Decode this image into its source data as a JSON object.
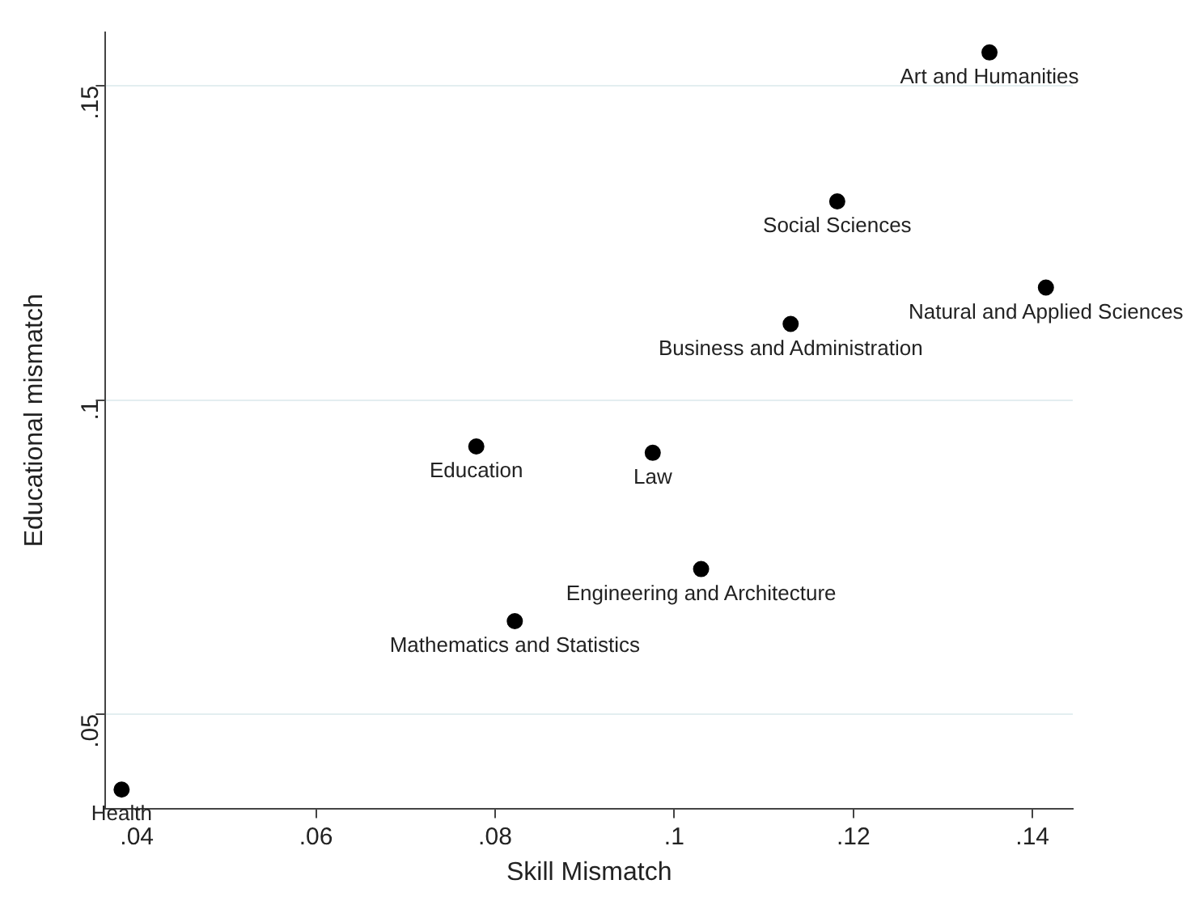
{
  "chart_data": {
    "type": "scatter",
    "xlabel": "Skill Mismatch",
    "ylabel": "Educational mismatch",
    "x": [
      0.1352,
      0.1182,
      0.1415,
      0.113,
      0.0779,
      0.0976,
      0.103,
      0.0822,
      0.0383
    ],
    "series": [
      {
        "color": "#000000",
        "values": [
          0.1553,
          0.1316,
          0.1179,
          0.1121,
          0.0926,
          0.0916,
          0.0731,
          0.0648,
          0.038
        ]
      }
    ],
    "xlim": [
      0.0365,
      0.1445
    ],
    "ylim": [
      0.035,
      0.1585
    ],
    "xticks": [
      {
        "value": 0.04,
        "label": ".04"
      },
      {
        "value": 0.06,
        "label": ".06"
      },
      {
        "value": 0.08,
        "label": ".08"
      },
      {
        "value": 0.1,
        "label": ".1"
      },
      {
        "value": 0.12,
        "label": ".12"
      },
      {
        "value": 0.14,
        "label": ".14"
      }
    ],
    "yticks": [
      {
        "value": 0.05,
        "label": ".05"
      },
      {
        "value": 0.1,
        "label": ".1"
      },
      {
        "value": 0.15,
        "label": ".15"
      }
    ],
    "grid": "y",
    "marker": "circle",
    "legend": false,
    "annotations": [
      {
        "text": "Art and Humanities",
        "x": 0.1352,
        "y": 0.1553
      },
      {
        "text": "Social Sciences",
        "x": 0.1182,
        "y": 0.1316
      },
      {
        "text": "Natural and Applied Sciences",
        "x": 0.1415,
        "y": 0.1179
      },
      {
        "text": "Business and Administration",
        "x": 0.113,
        "y": 0.1121
      },
      {
        "text": "Education",
        "x": 0.0779,
        "y": 0.0926
      },
      {
        "text": "Law",
        "x": 0.0976,
        "y": 0.0916
      },
      {
        "text": "Engineering and Architecture",
        "x": 0.103,
        "y": 0.0731
      },
      {
        "text": "Mathematics and Statistics",
        "x": 0.0822,
        "y": 0.0648
      },
      {
        "text": "Health",
        "x": 0.0383,
        "y": 0.038
      }
    ]
  }
}
